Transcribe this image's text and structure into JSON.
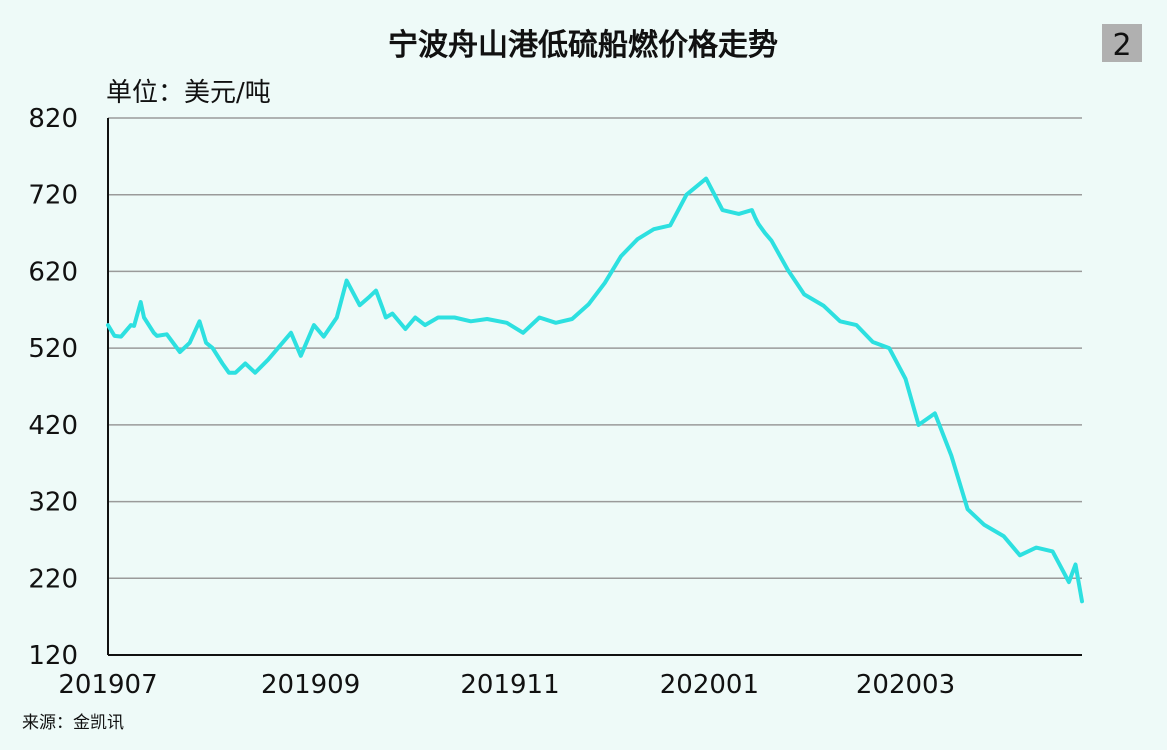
{
  "chart_data": {
    "type": "line",
    "title": "宁波舟山港低硫船燃价格走势",
    "unit_label": "单位：美元/吨",
    "source": "来源：金凯讯",
    "badge": "2",
    "xlabel": "",
    "ylabel": "",
    "ylim": [
      120,
      820
    ],
    "yticks": [
      820,
      720,
      620,
      520,
      420,
      320,
      220,
      120
    ],
    "xticks": [
      "201907",
      "201909",
      "201911",
      "202001",
      "202003"
    ],
    "grid": true,
    "line_color": "#2de0e0",
    "series": [
      {
        "x": [
          "2019-07-01",
          "2019-07-03",
          "2019-07-05",
          "2019-07-08",
          "2019-07-09",
          "2019-07-11",
          "2019-07-12",
          "2019-07-15",
          "2019-07-16",
          "2019-07-19",
          "2019-07-23",
          "2019-07-26",
          "2019-07-29",
          "2019-07-31",
          "2019-08-02",
          "2019-08-05",
          "2019-08-07",
          "2019-08-09",
          "2019-08-12",
          "2019-08-15",
          "2019-08-19",
          "2019-08-22",
          "2019-08-26",
          "2019-08-29",
          "2019-09-02",
          "2019-09-05",
          "2019-09-09",
          "2019-09-12",
          "2019-09-16",
          "2019-09-19",
          "2019-09-21",
          "2019-09-23",
          "2019-09-24",
          "2019-09-26",
          "2019-09-30",
          "2019-10-03",
          "2019-10-06",
          "2019-10-10",
          "2019-10-15",
          "2019-10-20",
          "2019-10-25",
          "2019-10-31",
          "2019-11-05",
          "2019-11-10",
          "2019-11-15",
          "2019-11-20",
          "2019-11-25",
          "2019-11-30",
          "2019-12-05",
          "2019-12-10",
          "2019-12-15",
          "2019-12-20",
          "2019-12-25",
          "2019-12-31",
          "2020-01-05",
          "2020-01-10",
          "2020-01-14",
          "2020-01-15",
          "2020-01-16",
          "2020-01-18",
          "2020-01-20",
          "2020-01-25",
          "2020-01-30",
          "2020-02-05",
          "2020-02-10",
          "2020-02-15",
          "2020-02-20",
          "2020-02-25",
          "2020-03-01",
          "2020-03-05",
          "2020-03-10",
          "2020-03-15",
          "2020-03-20",
          "2020-03-25",
          "2020-03-31",
          "2020-04-05",
          "2020-04-10",
          "2020-04-15",
          "2020-04-20",
          "2020-04-22",
          "2020-04-24"
        ],
        "values": [
          550,
          536,
          535,
          550,
          549,
          580,
          560,
          540,
          536,
          538,
          515,
          527,
          555,
          527,
          520,
          500,
          488,
          488,
          500,
          488,
          505,
          520,
          540,
          510,
          550,
          535,
          560,
          608,
          576,
          587,
          595,
          572,
          560,
          565,
          545,
          560,
          550,
          560,
          560,
          555,
          558,
          553,
          540,
          560,
          553,
          558,
          577,
          605,
          640,
          662,
          675,
          680,
          720,
          741,
          700,
          695,
          700,
          690,
          682,
          670,
          660,
          622,
          590,
          575,
          555,
          550,
          528,
          520,
          480,
          420,
          435,
          380,
          310,
          290,
          275,
          250,
          260,
          255,
          215,
          238,
          190
        ]
      }
    ]
  }
}
